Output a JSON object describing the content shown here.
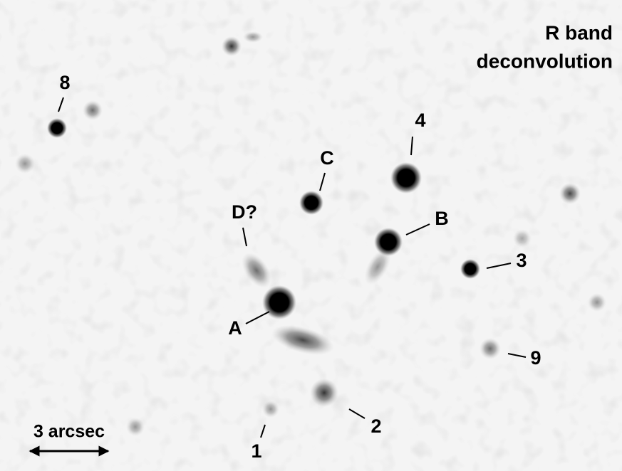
{
  "title": [
    "R band",
    "deconvolution"
  ],
  "labels": [
    "A",
    "B",
    "C",
    "D?",
    "1",
    "2",
    "3",
    "4",
    "8",
    "9"
  ],
  "scale_bar": "3 arcsec"
}
